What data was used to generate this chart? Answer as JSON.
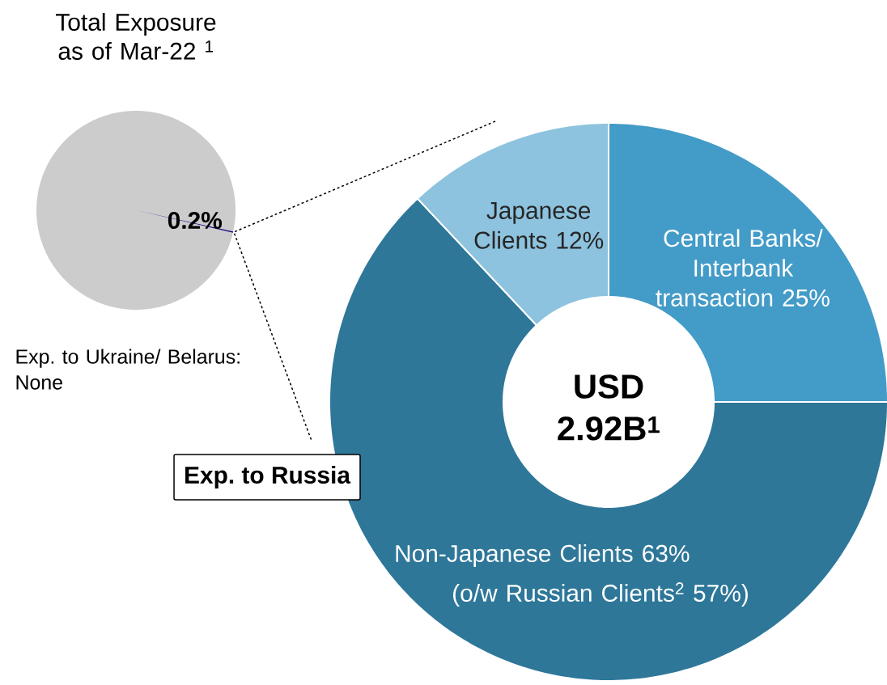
{
  "chart_data": [
    {
      "type": "pie",
      "title": "Total Exposure as of Mar-22 $^{1}$",
      "categories": [
        null,
        null
      ],
      "values": [
        0.2,
        99.8
      ],
      "colors": [
        "#1a1080",
        "#cccccc"
      ],
      "value_labels": [
        "0.2%",
        null
      ],
      "annotations": [
        "Exp. to Ukraine/ Belarus: None",
        "Exp. to Russia"
      ]
    },
    {
      "type": "donut",
      "categories": [
        "Central Banks/ Interbank transaction",
        "Non-Japanese Clients",
        "Japanese Clients"
      ],
      "values": [
        25,
        63,
        12
      ],
      "colors": [
        "#439bc8",
        "#2e7799",
        "#8dc3de"
      ],
      "value_labels": [
        "25%",
        "63%",
        "12%"
      ],
      "annotations": [
        "USD 2.92B$^{1}$",
        "(o/w Russian Clients$^{2}$ 57%)"
      ]
    }
  ]
}
